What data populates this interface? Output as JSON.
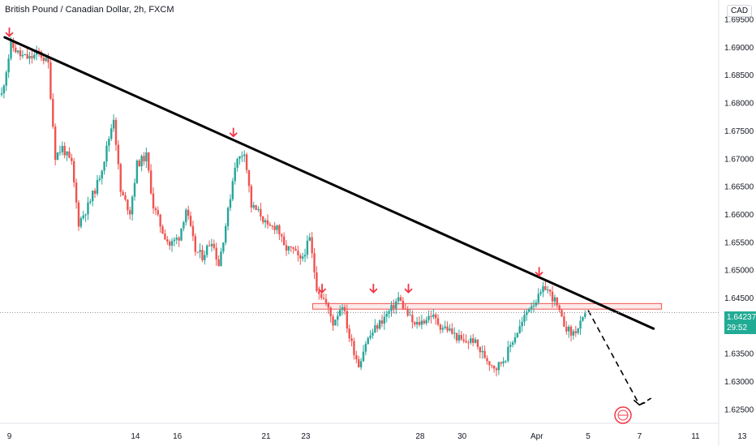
{
  "header": {
    "title": "British Pound / Canadian Dollar, 2h, FXCM",
    "currency": "CAD"
  },
  "colors": {
    "up": "#26a69a",
    "down": "#ef5350",
    "trendline": "#000000",
    "zone": "#ef5350",
    "arrow": "#f23645",
    "badge": "#22ab94"
  },
  "icons": [
    "down-arrow-marker-icon",
    "forecast-arrow-icon",
    "logo-icon"
  ],
  "chart_data": {
    "type": "candlestick",
    "title": "British Pound / Canadian Dollar, 2h, FXCM",
    "ylim": [
      1.6225,
      1.6985
    ],
    "y_ticks": [
      "1.69500",
      "1.69000",
      "1.68500",
      "1.68000",
      "1.67500",
      "1.67000",
      "1.66500",
      "1.66000",
      "1.65500",
      "1.65000",
      "1.64500",
      "1.64000",
      "1.63500",
      "1.63000",
      "1.62500"
    ],
    "x_ticks": [
      "9",
      "14",
      "16",
      "21",
      "23",
      "28",
      "30",
      "Apr",
      "5",
      "7",
      "11",
      "13"
    ],
    "current_price": "1.64237",
    "countdown": "29:52",
    "grid": false,
    "series_close_path": [
      [
        0,
        1.6815
      ],
      [
        4,
        1.6905
      ],
      [
        8,
        1.6885
      ],
      [
        12,
        1.688
      ],
      [
        16,
        1.689
      ],
      [
        20,
        1.687
      ],
      [
        23,
        1.6705
      ],
      [
        26,
        1.672
      ],
      [
        30,
        1.669
      ],
      [
        33,
        1.6585
      ],
      [
        37,
        1.6615
      ],
      [
        41,
        1.6655
      ],
      [
        44,
        1.67
      ],
      [
        48,
        1.6775
      ],
      [
        51,
        1.664
      ],
      [
        55,
        1.6605
      ],
      [
        58,
        1.669
      ],
      [
        62,
        1.6705
      ],
      [
        65,
        1.6615
      ],
      [
        69,
        1.657
      ],
      [
        72,
        1.6545
      ],
      [
        76,
        1.656
      ],
      [
        79,
        1.661
      ],
      [
        83,
        1.6535
      ],
      [
        86,
        1.6525
      ],
      [
        90,
        1.6555
      ],
      [
        93,
        1.651
      ],
      [
        97,
        1.6605
      ],
      [
        100,
        1.669
      ],
      [
        104,
        1.6715
      ],
      [
        107,
        1.6615
      ],
      [
        111,
        1.66
      ],
      [
        114,
        1.6575
      ],
      [
        118,
        1.658
      ],
      [
        121,
        1.654
      ],
      [
        125,
        1.6535
      ],
      [
        128,
        1.6515
      ],
      [
        132,
        1.6555
      ],
      [
        135,
        1.647
      ],
      [
        139,
        1.644
      ],
      [
        142,
        1.6405
      ],
      [
        146,
        1.644
      ],
      [
        149,
        1.638
      ],
      [
        153,
        1.633
      ],
      [
        156,
        1.637
      ],
      [
        160,
        1.6395
      ],
      [
        163,
        1.641
      ],
      [
        167,
        1.643
      ],
      [
        170,
        1.645
      ],
      [
        174,
        1.642
      ],
      [
        177,
        1.64
      ],
      [
        181,
        1.641
      ],
      [
        184,
        1.642
      ],
      [
        188,
        1.64
      ],
      [
        191,
        1.6395
      ],
      [
        195,
        1.638
      ],
      [
        198,
        1.637
      ],
      [
        202,
        1.6375
      ],
      [
        205,
        1.6355
      ],
      [
        209,
        1.6335
      ],
      [
        212,
        1.6325
      ],
      [
        216,
        1.6345
      ],
      [
        219,
        1.6375
      ],
      [
        223,
        1.6405
      ],
      [
        226,
        1.6435
      ],
      [
        230,
        1.645
      ],
      [
        233,
        1.647
      ],
      [
        237,
        1.6445
      ],
      [
        240,
        1.641
      ],
      [
        244,
        1.6385
      ],
      [
        247,
        1.6395
      ],
      [
        251,
        1.6423
      ]
    ],
    "trendline": {
      "from": {
        "x": 2,
        "y": 1.6918
      },
      "to": {
        "x": 280,
        "y": 1.6395
      }
    },
    "resistance_zone": {
      "x_from": 134,
      "x_to": 280,
      "y_low": 1.643,
      "y_high": 1.644
    },
    "forecast_path": [
      [
        252,
        1.6428
      ],
      [
        274,
        1.6258
      ],
      [
        279,
        1.627
      ]
    ],
    "arrow_markers": [
      [
        4,
        1.692
      ],
      [
        100,
        1.674
      ],
      [
        138,
        1.646
      ],
      [
        160,
        1.646
      ],
      [
        175,
        1.646
      ],
      [
        231,
        1.649
      ]
    ]
  }
}
